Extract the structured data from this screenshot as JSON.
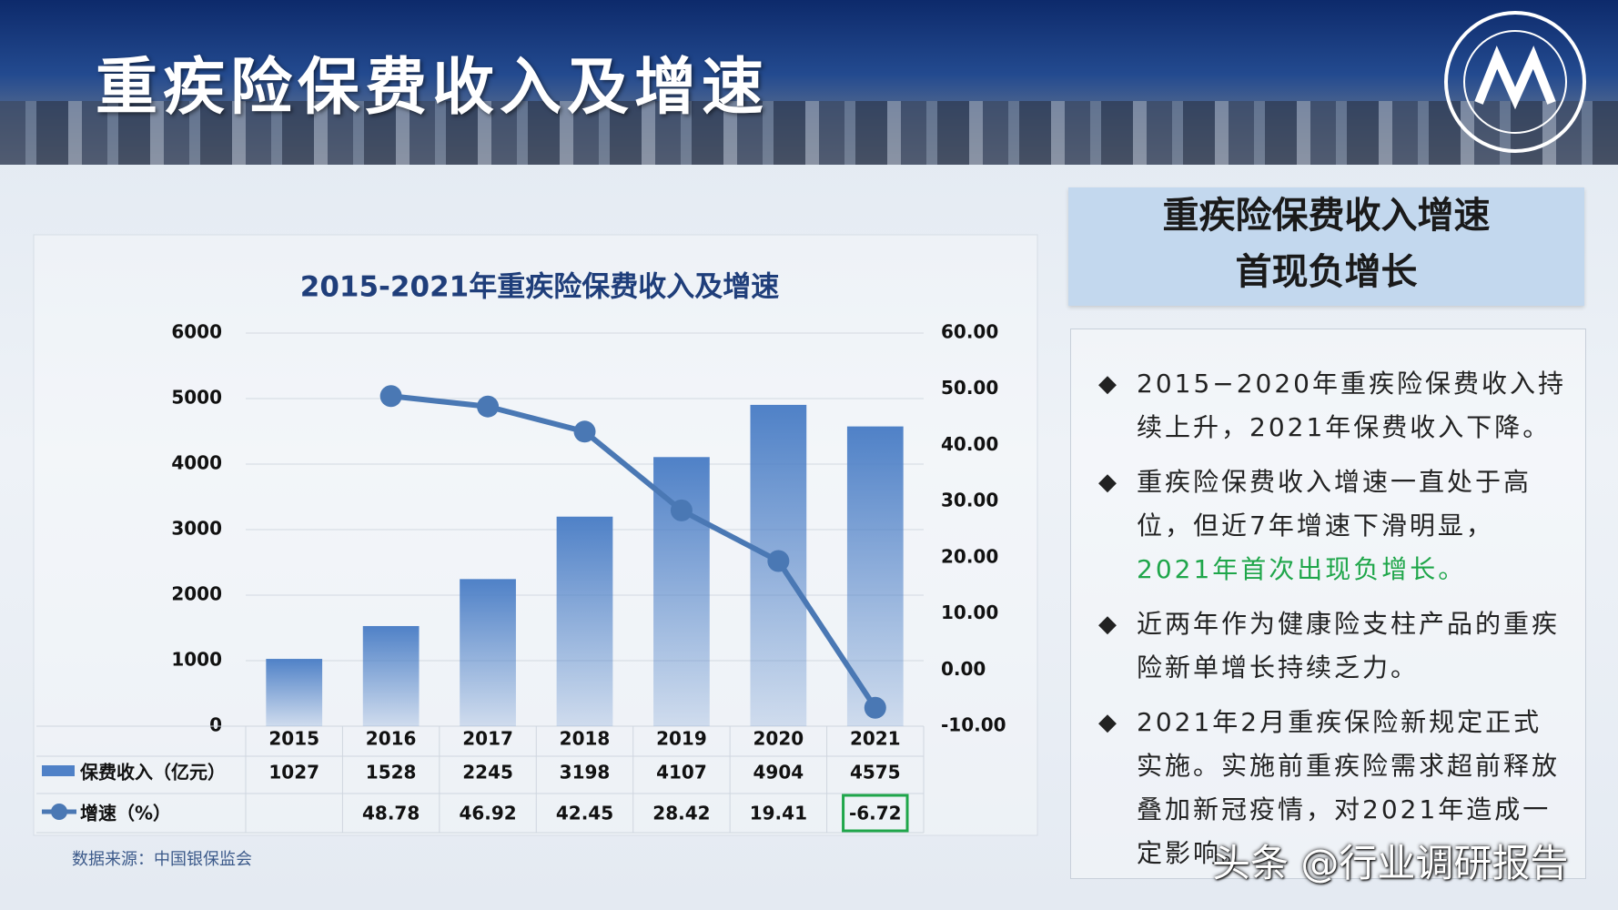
{
  "header": {
    "title": "重疾险保费收入及增速"
  },
  "chart_data": {
    "type": "bar",
    "title": "2015-2021年重疾险保费收入及增速",
    "categories": [
      "2015",
      "2016",
      "2017",
      "2018",
      "2019",
      "2020",
      "2021"
    ],
    "series": [
      {
        "name": "保费收入（亿元）",
        "type": "bar",
        "color": "#4f81c7",
        "values": [
          1027,
          1528,
          2245,
          3198,
          4107,
          4904,
          4575
        ]
      },
      {
        "name": "增速（%）",
        "type": "line",
        "axis": "y2",
        "color": "#4a78b4",
        "values": [
          null,
          48.78,
          46.92,
          42.45,
          28.42,
          19.41,
          -6.72
        ]
      }
    ],
    "ylim": [
      0,
      6000
    ],
    "yticks": [
      0,
      1000,
      2000,
      3000,
      4000,
      5000,
      6000
    ],
    "y2lim": [
      -10,
      60
    ],
    "y2ticks": [
      {
        "value": -10,
        "label": "-10.00"
      },
      {
        "value": 0,
        "label": "0.00"
      },
      {
        "value": 10,
        "label": "10.00"
      },
      {
        "value": 20,
        "label": "20.00"
      },
      {
        "value": 30,
        "label": "30.00"
      },
      {
        "value": 40,
        "label": "40.00"
      },
      {
        "value": 50,
        "label": "50.00"
      },
      {
        "value": 60,
        "label": "60.00"
      }
    ],
    "grid": true,
    "source": "数据来源：中国银保监会"
  },
  "sidebar": {
    "heading": [
      "重疾险保费收入增速",
      "首现负增长"
    ],
    "bullets": [
      [
        "2015−2020年重疾险保费收入持续上升，2021年保费收入下降。"
      ],
      [
        "重疾险保费收入增速一直处于高位，但近7年增速下滑明显，",
        "2021年首次出现负增长。"
      ],
      [
        "近两年作为健康险支柱产品的重疾险新单增长持续乏力。"
      ],
      [
        "2021年2月重疾保险新规定正式实施。实施前重疾险需求超前释放叠加新冠疫情，对2021年造成一定影响。"
      ]
    ]
  },
  "watermark": "头条 @行业调研报告"
}
